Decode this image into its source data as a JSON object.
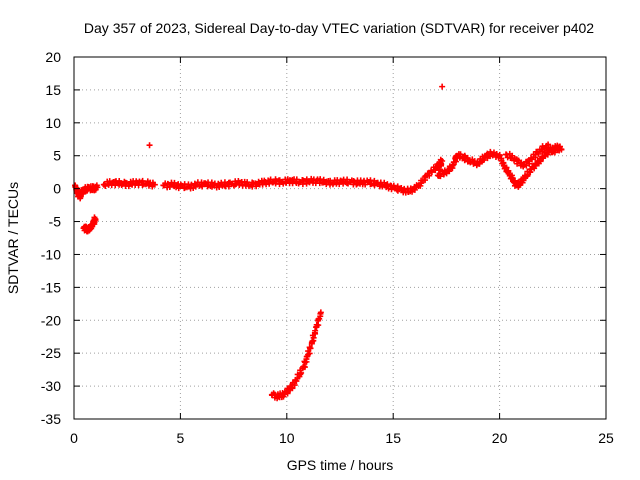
{
  "chart_data": {
    "type": "scatter",
    "title": "Day 357 of 2023, Sidereal Day-to-day VTEC variation (SDTVAR) for receiver p402",
    "xlabel": "GPS time / hours",
    "ylabel": "SDTVAR / TECUs",
    "xlim": [
      0,
      25
    ],
    "ylim": [
      -35,
      20
    ],
    "grid": true,
    "xticks": [
      0,
      5,
      10,
      15,
      20,
      25
    ],
    "yticks": [
      -35,
      -30,
      -25,
      -20,
      -15,
      -10,
      -5,
      0,
      5,
      10,
      15,
      20
    ],
    "marker_color": "#ff0000",
    "series": [
      {
        "name": "SDTVAR",
        "points": [
          [
            0.05,
            0.5
          ],
          [
            0.15,
            -0.5
          ],
          [
            0.25,
            -1.2
          ],
          [
            0.35,
            -0.6
          ],
          [
            0.5,
            -0.2
          ],
          [
            0.7,
            0.1
          ],
          [
            0.9,
            0.0
          ],
          [
            1.1,
            0.2
          ],
          [
            0.45,
            -6.0
          ],
          [
            0.6,
            -6.2
          ],
          [
            0.75,
            -6.1
          ],
          [
            0.85,
            -5.5
          ],
          [
            0.95,
            -5.0
          ],
          [
            1.0,
            -4.6
          ],
          [
            1.4,
            0.6
          ],
          [
            1.8,
            0.9
          ],
          [
            2.2,
            0.8
          ],
          [
            2.6,
            0.7
          ],
          [
            3.0,
            0.9
          ],
          [
            3.4,
            0.8
          ],
          [
            3.8,
            0.6
          ],
          [
            3.55,
            6.6
          ],
          [
            4.2,
            0.5
          ],
          [
            4.6,
            0.6
          ],
          [
            5.0,
            0.4
          ],
          [
            5.4,
            0.3
          ],
          [
            5.8,
            0.6
          ],
          [
            6.2,
            0.7
          ],
          [
            6.6,
            0.5
          ],
          [
            7.0,
            0.6
          ],
          [
            7.4,
            0.7
          ],
          [
            7.8,
            0.9
          ],
          [
            8.2,
            0.6
          ],
          [
            8.6,
            0.7
          ],
          [
            9.0,
            1.0
          ],
          [
            9.4,
            1.1
          ],
          [
            9.8,
            1.0
          ],
          [
            10.2,
            1.2
          ],
          [
            10.6,
            1.0
          ],
          [
            11.0,
            1.1
          ],
          [
            11.4,
            1.2
          ],
          [
            11.8,
            1.0
          ],
          [
            12.2,
            0.9
          ],
          [
            12.6,
            1.1
          ],
          [
            13.0,
            1.0
          ],
          [
            13.4,
            0.9
          ],
          [
            13.8,
            1.0
          ],
          [
            14.2,
            0.8
          ],
          [
            14.6,
            0.5
          ],
          [
            15.0,
            0.2
          ],
          [
            15.4,
            -0.2
          ],
          [
            15.8,
            -0.4
          ],
          [
            16.2,
            0.5
          ],
          [
            16.6,
            2.0
          ],
          [
            17.0,
            3.2
          ],
          [
            17.3,
            4.2
          ],
          [
            17.1,
            2.0
          ],
          [
            17.5,
            2.5
          ],
          [
            17.8,
            3.5
          ],
          [
            18.0,
            5.0
          ],
          [
            18.3,
            4.8
          ],
          [
            18.6,
            4.2
          ],
          [
            19.0,
            3.8
          ],
          [
            19.3,
            4.8
          ],
          [
            19.6,
            5.3
          ],
          [
            20.0,
            5.0
          ],
          [
            20.2,
            3.5
          ],
          [
            20.4,
            2.5
          ],
          [
            20.6,
            1.5
          ],
          [
            20.8,
            0.5
          ],
          [
            21.0,
            0.9
          ],
          [
            21.2,
            1.8
          ],
          [
            21.5,
            3.0
          ],
          [
            21.8,
            4.0
          ],
          [
            22.1,
            5.0
          ],
          [
            22.4,
            5.8
          ],
          [
            22.7,
            6.3
          ],
          [
            22.9,
            6.0
          ],
          [
            20.3,
            5.2
          ],
          [
            20.7,
            4.5
          ],
          [
            21.1,
            3.5
          ],
          [
            21.4,
            4.2
          ],
          [
            21.8,
            5.5
          ],
          [
            22.2,
            6.5
          ],
          [
            22.6,
            5.5
          ],
          [
            17.3,
            15.5
          ],
          [
            9.3,
            -31.3
          ],
          [
            9.6,
            -31.6
          ],
          [
            9.9,
            -31.2
          ],
          [
            10.2,
            -30.2
          ],
          [
            10.5,
            -28.8
          ],
          [
            10.8,
            -27.0
          ],
          [
            11.0,
            -25.2
          ],
          [
            11.2,
            -23.2
          ],
          [
            11.4,
            -21.0
          ],
          [
            11.6,
            -18.8
          ]
        ]
      }
    ]
  }
}
